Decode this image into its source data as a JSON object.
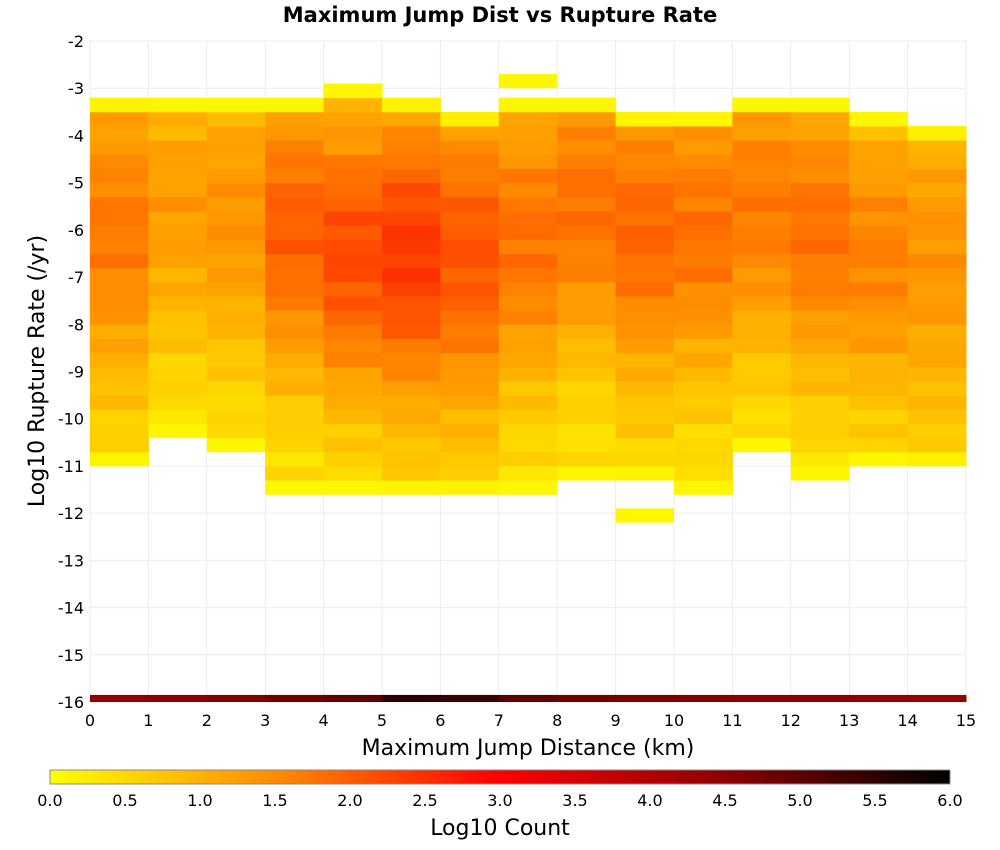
{
  "chart_data": {
    "type": "heatmap",
    "title": "Maximum Jump Dist vs Rupture Rate",
    "xlabel": "Maximum Jump Distance (km)",
    "ylabel": "Log10 Rupture Rate (/yr)",
    "xlim": [
      0,
      15
    ],
    "ylim": [
      -16,
      -2
    ],
    "x_ticks": [
      "0",
      "1",
      "2",
      "3",
      "4",
      "5",
      "6",
      "7",
      "8",
      "9",
      "10",
      "11",
      "12",
      "13",
      "14",
      "15"
    ],
    "y_ticks": [
      "-2",
      "-3",
      "-4",
      "-5",
      "-6",
      "-7",
      "-8",
      "-9",
      "-10",
      "-11",
      "-12",
      "-13",
      "-14",
      "-15",
      "-16"
    ],
    "grid": true,
    "colorbar": {
      "label": "Log10 Count",
      "range": [
        0,
        6
      ],
      "ticks": [
        "0.0",
        "0.5",
        "1.0",
        "1.5",
        "2.0",
        "2.5",
        "3.0",
        "3.5",
        "4.0",
        "4.5",
        "5.0",
        "5.5",
        "6.0"
      ],
      "colors": [
        "#ffff00",
        "#ff8c00",
        "#ff0000",
        "#8b0000",
        "#000000"
      ],
      "position": "bottom"
    },
    "bin_height": 0.3,
    "columns": [
      {
        "x0": 0,
        "y_low": -11.0,
        "y_high": -3.3,
        "peak_y": -6.0,
        "peak": 1.7,
        "edge": 0.4
      },
      {
        "x0": 1,
        "y_low": -10.4,
        "y_high": -3.3,
        "peak_y": -5.5,
        "peak": 1.3,
        "edge": 0.3
      },
      {
        "x0": 2,
        "y_low": -10.7,
        "y_high": -3.3,
        "peak_y": -5.7,
        "peak": 1.4,
        "edge": 0.3
      },
      {
        "x0": 3,
        "y_low": -11.6,
        "y_high": -3.3,
        "peak_y": -6.0,
        "peak": 2.0,
        "edge": 0.3
      },
      {
        "x0": 4,
        "y_low": -11.6,
        "y_high": -3.0,
        "peak_y": -6.5,
        "peak": 2.2,
        "edge": 0.3
      },
      {
        "x0": 5,
        "y_low": -11.6,
        "y_high": -3.3,
        "peak_y": -6.5,
        "peak": 2.4,
        "edge": 0.4
      },
      {
        "x0": 6,
        "y_low": -11.6,
        "y_high": -3.6,
        "peak_y": -6.5,
        "peak": 2.1,
        "edge": 0.5
      },
      {
        "x0": 7,
        "y_low": -11.6,
        "y_high": -3.3,
        "peak_y": -6.2,
        "peak": 1.8,
        "edge": 0.3
      },
      {
        "x0": 8,
        "y_low": -11.3,
        "y_high": -3.3,
        "peak_y": -5.5,
        "peak": 1.8,
        "edge": 0.3
      },
      {
        "x0": 9,
        "y_low": -11.3,
        "y_high": -3.6,
        "peak_y": -6.0,
        "peak": 1.9,
        "edge": 0.4
      },
      {
        "x0": 10,
        "y_low": -11.6,
        "y_high": -3.6,
        "peak_y": -6.0,
        "peak": 1.8,
        "edge": 0.3
      },
      {
        "x0": 11,
        "y_low": -10.7,
        "y_high": -3.3,
        "peak_y": -5.5,
        "peak": 1.7,
        "edge": 0.3
      },
      {
        "x0": 12,
        "y_low": -11.3,
        "y_high": -3.3,
        "peak_y": -6.0,
        "peak": 1.8,
        "edge": 0.3
      },
      {
        "x0": 13,
        "y_low": -11.0,
        "y_high": -3.6,
        "peak_y": -6.5,
        "peak": 1.6,
        "edge": 0.3
      },
      {
        "x0": 14,
        "y_low": -11.0,
        "y_high": -3.9,
        "peak_y": -6.5,
        "peak": 1.4,
        "edge": 0.5
      }
    ],
    "isolated_cells": [
      {
        "x0": 7,
        "x1": 8,
        "y0": -3.0,
        "y1": -2.7,
        "value": 0.1
      },
      {
        "x0": 9,
        "x1": 10,
        "y0": -12.2,
        "y1": -11.9,
        "value": 0.1
      }
    ],
    "bottom_row": {
      "y0": -16.0,
      "y1": -15.85,
      "x0": 0,
      "x1": 15,
      "values": [
        4.4,
        4.5,
        4.6,
        4.8,
        5.0,
        5.5,
        5.4,
        5.0,
        4.8,
        4.7,
        4.6,
        4.5,
        4.5,
        4.4,
        4.3
      ]
    }
  }
}
